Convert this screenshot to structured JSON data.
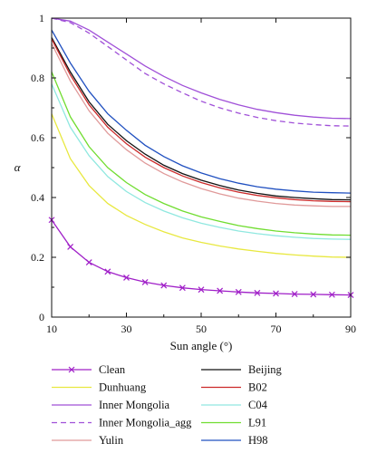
{
  "chart_data": {
    "type": "line",
    "title": "",
    "xlabel": "Sun angle (°)",
    "ylabel": "α",
    "xlim": [
      10,
      90
    ],
    "ylim": [
      0,
      1
    ],
    "xticks": [
      "10",
      "30",
      "50",
      "70",
      "90"
    ],
    "yticks": [
      "0",
      "0.2",
      "0.4",
      "0.6",
      "0.8",
      "1"
    ],
    "grid": false,
    "legend_position": "bottom",
    "series": [
      {
        "name": "Clean",
        "color": "#a020c8",
        "dash": false,
        "marker": "x",
        "x": [
          10,
          15,
          20,
          25,
          30,
          35,
          40,
          45,
          50,
          55,
          60,
          65,
          70,
          75,
          80,
          85,
          90
        ],
        "y": [
          0.325,
          0.235,
          0.183,
          0.152,
          0.132,
          0.117,
          0.106,
          0.098,
          0.092,
          0.088,
          0.084,
          0.081,
          0.079,
          0.077,
          0.076,
          0.075,
          0.074
        ]
      },
      {
        "name": "Dunhuang",
        "color": "#e8e840",
        "dash": false,
        "marker": "",
        "x": [
          10,
          15,
          20,
          25,
          30,
          35,
          40,
          45,
          50,
          55,
          60,
          65,
          70,
          75,
          80,
          85,
          90
        ],
        "y": [
          0.68,
          0.53,
          0.44,
          0.38,
          0.34,
          0.31,
          0.285,
          0.265,
          0.25,
          0.238,
          0.228,
          0.22,
          0.213,
          0.208,
          0.204,
          0.201,
          0.2
        ]
      },
      {
        "name": "Inner Mongolia",
        "color": "#a050d8",
        "dash": false,
        "marker": "",
        "x": [
          10,
          15,
          20,
          25,
          30,
          35,
          40,
          45,
          50,
          55,
          60,
          65,
          70,
          75,
          80,
          85,
          90
        ],
        "y": [
          1.0,
          0.99,
          0.96,
          0.92,
          0.88,
          0.84,
          0.805,
          0.775,
          0.75,
          0.728,
          0.71,
          0.695,
          0.684,
          0.675,
          0.669,
          0.665,
          0.664
        ]
      },
      {
        "name": "Inner Mongolia_agg",
        "color": "#a050d8",
        "dash": true,
        "marker": "",
        "x": [
          10,
          15,
          20,
          25,
          30,
          35,
          40,
          45,
          50,
          55,
          60,
          65,
          70,
          75,
          80,
          85,
          90
        ],
        "y": [
          1.0,
          0.985,
          0.95,
          0.905,
          0.86,
          0.815,
          0.78,
          0.75,
          0.722,
          0.7,
          0.682,
          0.668,
          0.657,
          0.649,
          0.644,
          0.64,
          0.639
        ]
      },
      {
        "name": "Yulin",
        "color": "#e09a9a",
        "dash": false,
        "marker": "",
        "x": [
          10,
          15,
          20,
          25,
          30,
          35,
          40,
          45,
          50,
          55,
          60,
          65,
          70,
          75,
          80,
          85,
          90
        ],
        "y": [
          0.915,
          0.79,
          0.69,
          0.615,
          0.56,
          0.515,
          0.48,
          0.452,
          0.43,
          0.412,
          0.398,
          0.388,
          0.38,
          0.375,
          0.372,
          0.37,
          0.37
        ]
      },
      {
        "name": "Beijing",
        "color": "#111111",
        "dash": false,
        "marker": "",
        "x": [
          10,
          15,
          20,
          25,
          30,
          35,
          40,
          45,
          50,
          55,
          60,
          65,
          70,
          75,
          80,
          85,
          90
        ],
        "y": [
          0.935,
          0.82,
          0.72,
          0.645,
          0.59,
          0.545,
          0.508,
          0.48,
          0.458,
          0.44,
          0.425,
          0.414,
          0.405,
          0.4,
          0.396,
          0.393,
          0.392
        ]
      },
      {
        "name": "B02",
        "color": "#cc2a2a",
        "dash": false,
        "marker": "",
        "x": [
          10,
          15,
          20,
          25,
          30,
          35,
          40,
          45,
          50,
          55,
          60,
          65,
          70,
          75,
          80,
          85,
          90
        ],
        "y": [
          0.93,
          0.81,
          0.71,
          0.635,
          0.58,
          0.535,
          0.5,
          0.472,
          0.45,
          0.432,
          0.418,
          0.407,
          0.399,
          0.393,
          0.389,
          0.387,
          0.386
        ]
      },
      {
        "name": "C04",
        "color": "#90e8e0",
        "dash": false,
        "marker": "",
        "x": [
          10,
          15,
          20,
          25,
          30,
          35,
          40,
          45,
          50,
          55,
          60,
          65,
          70,
          75,
          80,
          85,
          90
        ],
        "y": [
          0.78,
          0.635,
          0.54,
          0.47,
          0.42,
          0.383,
          0.355,
          0.332,
          0.314,
          0.3,
          0.288,
          0.279,
          0.272,
          0.267,
          0.263,
          0.261,
          0.26
        ]
      },
      {
        "name": "L91",
        "color": "#70dd30",
        "dash": false,
        "marker": "",
        "x": [
          10,
          15,
          20,
          25,
          30,
          35,
          40,
          45,
          50,
          55,
          60,
          65,
          70,
          75,
          80,
          85,
          90
        ],
        "y": [
          0.82,
          0.67,
          0.57,
          0.5,
          0.45,
          0.41,
          0.38,
          0.355,
          0.335,
          0.32,
          0.306,
          0.296,
          0.288,
          0.282,
          0.278,
          0.275,
          0.274
        ]
      },
      {
        "name": "H98",
        "color": "#2050c0",
        "dash": false,
        "marker": "",
        "x": [
          10,
          15,
          20,
          25,
          30,
          35,
          40,
          45,
          50,
          55,
          60,
          65,
          70,
          75,
          80,
          85,
          90
        ],
        "y": [
          0.96,
          0.85,
          0.755,
          0.68,
          0.625,
          0.575,
          0.537,
          0.506,
          0.482,
          0.463,
          0.448,
          0.436,
          0.428,
          0.422,
          0.418,
          0.416,
          0.415
        ]
      }
    ]
  }
}
